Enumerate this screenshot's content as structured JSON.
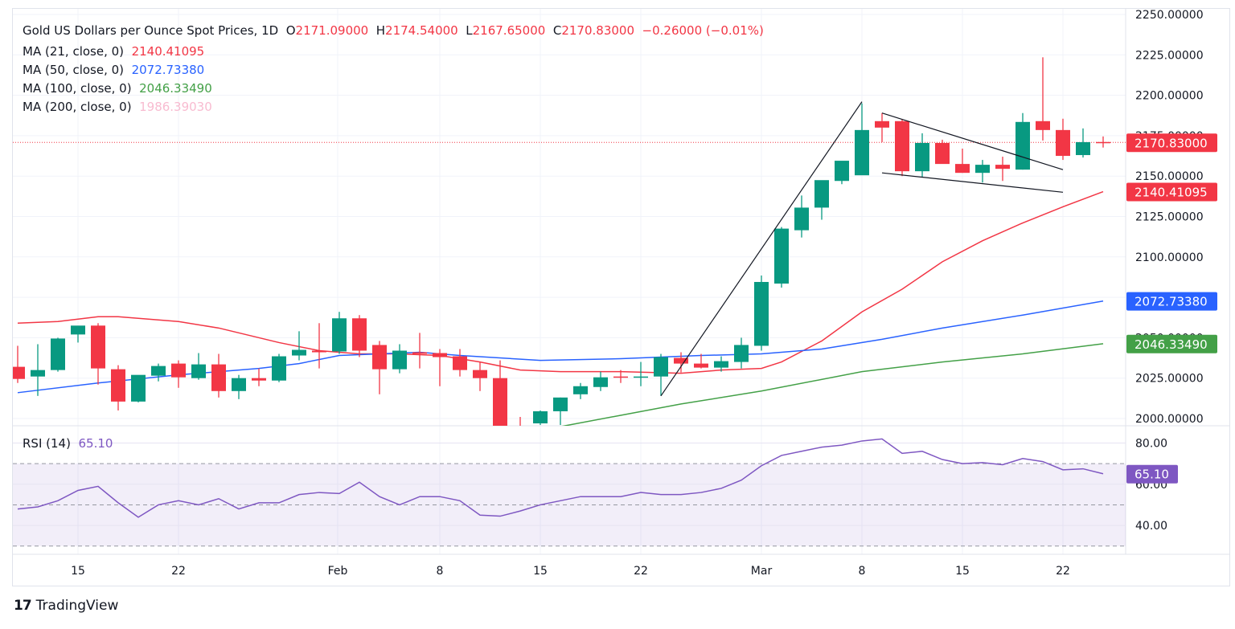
{
  "header": {
    "symbol": "Gold US Dollars per Ounce Spot Prices, 1D",
    "o_label": "O",
    "open": "2171.09000",
    "h_label": "H",
    "high": "2174.54000",
    "l_label": "L",
    "low": "2167.65000",
    "c_label": "C",
    "close": "2170.83000",
    "change": "−0.26000 (−0.01%)"
  },
  "indicators": [
    {
      "label": "MA (21, close, 0)",
      "value": "2140.41095",
      "color": "#f23645"
    },
    {
      "label": "MA (50, close, 0)",
      "value": "2072.73380",
      "color": "#2962ff"
    },
    {
      "label": "MA (100, close, 0)",
      "value": "2046.33490",
      "color": "#43a047"
    },
    {
      "label": "MA (200, close, 0)",
      "value": "1986.39030",
      "color": "#f8bbd0"
    }
  ],
  "rsi": {
    "label": "RSI (14)",
    "value": "65.10",
    "color": "#7e57c2"
  },
  "colors": {
    "up": "#089981",
    "down": "#f23645",
    "grid": "#f0f3fa",
    "rsi_band": "#7e57c2"
  },
  "footer": {
    "brand": "TradingView",
    "logo_glyph": "17"
  },
  "chart_data": {
    "type": "candlestick",
    "title": "Gold US Dollars per Ounce Spot Prices, 1D",
    "ylim": [
      1996,
      2254
    ],
    "y_ticks": [
      "2250.00000",
      "2225.00000",
      "2200.00000",
      "2175.00000",
      "2150.00000",
      "2125.00000",
      "2100.00000",
      "2075.00000",
      "2050.00000",
      "2025.00000",
      "2000.00000"
    ],
    "y_tick_values": [
      2250,
      2225,
      2200,
      2175,
      2150,
      2125,
      2100,
      2075,
      2050,
      2025,
      2000
    ],
    "x_ticks": [
      {
        "label": "15",
        "index": 3
      },
      {
        "label": "22",
        "index": 8
      },
      {
        "label": "Feb",
        "index": 16
      },
      {
        "label": "8",
        "index": 21
      },
      {
        "label": "15",
        "index": 26
      },
      {
        "label": "22",
        "index": 31
      },
      {
        "label": "Mar",
        "index": 37
      },
      {
        "label": "8",
        "index": 42
      },
      {
        "label": "15",
        "index": 47
      },
      {
        "label": "22",
        "index": 52
      }
    ],
    "candles": [
      [
        2032.0,
        2045.0,
        2022.0,
        2024.5
      ],
      [
        2026.0,
        2046.0,
        2014.0,
        2030.0
      ],
      [
        2030.0,
        2050.0,
        2029.0,
        2049.5
      ],
      [
        2052.0,
        2056.0,
        2047.0,
        2057.5
      ],
      [
        2057.5,
        2059.0,
        2021.0,
        2031.0
      ],
      [
        2030.5,
        2033.0,
        2005.0,
        2010.5
      ],
      [
        2010.5,
        2026.5,
        2010.0,
        2027.0
      ],
      [
        2026.5,
        2034.0,
        2023.0,
        2032.5
      ],
      [
        2034.0,
        2036.0,
        2019.0,
        2025.5
      ],
      [
        2025.0,
        2040.5,
        2024.0,
        2033.5
      ],
      [
        2033.5,
        2040.0,
        2013.0,
        2017.0
      ],
      [
        2017.0,
        2027.0,
        2012.0,
        2025.0
      ],
      [
        2025.0,
        2031.0,
        2020.0,
        2023.5
      ],
      [
        2023.5,
        2040.0,
        2022.5,
        2038.5
      ],
      [
        2039.0,
        2054.0,
        2036.0,
        2042.5
      ],
      [
        2042.0,
        2059.0,
        2031.0,
        2041.0
      ],
      [
        2041.5,
        2066.0,
        2040.0,
        2062.0
      ],
      [
        2062.0,
        2064.0,
        2038.0,
        2042.0
      ],
      [
        2045.5,
        2048.0,
        2015.0,
        2030.5
      ],
      [
        2030.5,
        2046.0,
        2028.0,
        2042.0
      ],
      [
        2041.0,
        2053.0,
        2031.0,
        2040.0
      ],
      [
        2040.5,
        2043.0,
        2020.0,
        2038.0
      ],
      [
        2038.5,
        2043.0,
        2026.0,
        2030.0
      ],
      [
        2030.0,
        2035.0,
        2017.0,
        2025.0
      ],
      [
        2025.0,
        2036.0,
        1989.0,
        1992.0
      ],
      [
        1992.0,
        2001.0,
        1984.0,
        1991.0
      ],
      [
        1997.0,
        2005.0,
        1996.0,
        2004.5
      ],
      [
        2004.5,
        2013.0,
        1996.0,
        2013.0
      ],
      [
        2015.0,
        2022.0,
        2012.0,
        2020.0
      ],
      [
        2019.5,
        2029.0,
        2017.0,
        2025.5
      ],
      [
        2026.0,
        2030.0,
        2022.0,
        2025.5
      ],
      [
        2025.5,
        2035.0,
        2020.0,
        2026.0
      ],
      [
        2026.0,
        2040.0,
        2014.0,
        2038.0
      ],
      [
        2037.5,
        2041.0,
        2028.5,
        2034.0
      ],
      [
        2034.0,
        2040.0,
        2031.0,
        2031.5
      ],
      [
        2031.5,
        2038.5,
        2029.0,
        2035.5
      ],
      [
        2035.0,
        2050.0,
        2031.0,
        2045.5
      ],
      [
        2045.0,
        2088.5,
        2042.0,
        2084.5
      ],
      [
        2083.5,
        2118.5,
        2081.0,
        2117.5
      ],
      [
        2116.5,
        2138.0,
        2112.0,
        2130.5
      ],
      [
        2130.5,
        2141.0,
        2123.0,
        2147.5
      ],
      [
        2147.0,
        2157.5,
        2145.0,
        2159.5
      ],
      [
        2150.5,
        2195.0,
        2153.0,
        2178.5
      ],
      [
        2184.0,
        2189.0,
        2171.0,
        2180.0
      ],
      [
        2184.0,
        2185.0,
        2150.0,
        2153.0
      ],
      [
        2153.0,
        2176.5,
        2149.5,
        2170.5
      ],
      [
        2170.5,
        2172.5,
        2158.0,
        2157.5
      ],
      [
        2157.5,
        2167.0,
        2152.0,
        2152.0
      ],
      [
        2152.0,
        2160.0,
        2146.0,
        2157.0
      ],
      [
        2157.0,
        2162.0,
        2147.0,
        2154.5
      ],
      [
        2154.0,
        2189.0,
        2154.0,
        2183.5
      ],
      [
        2184.0,
        2223.5,
        2172.0,
        2178.5
      ],
      [
        2178.5,
        2185.5,
        2160.0,
        2162.5
      ],
      [
        2163.0,
        2179.5,
        2161.5,
        2171.0
      ],
      [
        2171.09,
        2174.54,
        2167.65,
        2170.83
      ]
    ],
    "moving_averages": [
      {
        "name": "MA 21",
        "color": "#f23645",
        "points": [
          [
            0,
            2059
          ],
          [
            2,
            2060
          ],
          [
            4,
            2063
          ],
          [
            5,
            2063
          ],
          [
            8,
            2060
          ],
          [
            10,
            2056
          ],
          [
            13,
            2047
          ],
          [
            15,
            2042
          ],
          [
            17,
            2040
          ],
          [
            19,
            2040
          ],
          [
            21,
            2039
          ],
          [
            23,
            2035
          ],
          [
            25,
            2030
          ],
          [
            27,
            2029
          ],
          [
            30,
            2029
          ],
          [
            33,
            2028
          ],
          [
            35,
            2030
          ],
          [
            37,
            2031
          ],
          [
            38,
            2035
          ],
          [
            40,
            2048
          ],
          [
            42,
            2066
          ],
          [
            44,
            2080
          ],
          [
            46,
            2097
          ],
          [
            48,
            2110
          ],
          [
            50,
            2121
          ],
          [
            52,
            2131
          ],
          [
            54,
            2140.4
          ]
        ]
      },
      {
        "name": "MA 50",
        "color": "#2962ff",
        "points": [
          [
            0,
            2016
          ],
          [
            4,
            2022
          ],
          [
            8,
            2027
          ],
          [
            12,
            2031
          ],
          [
            14,
            2034
          ],
          [
            16,
            2039
          ],
          [
            18,
            2040
          ],
          [
            20,
            2041
          ],
          [
            22,
            2039
          ],
          [
            26,
            2036
          ],
          [
            30,
            2037
          ],
          [
            34,
            2039
          ],
          [
            37,
            2040
          ],
          [
            40,
            2043
          ],
          [
            43,
            2049
          ],
          [
            46,
            2056
          ],
          [
            50,
            2064
          ],
          [
            54,
            2072.7
          ]
        ]
      },
      {
        "name": "MA 100",
        "color": "#43a047",
        "points": [
          [
            27,
            1995
          ],
          [
            30,
            2002
          ],
          [
            33,
            2009
          ],
          [
            37,
            2017
          ],
          [
            42,
            2029
          ],
          [
            46,
            2035
          ],
          [
            50,
            2040
          ],
          [
            54,
            2046.3
          ]
        ]
      }
    ],
    "trendlines": [
      {
        "name": "rally-line",
        "from": [
          32,
          2014
        ],
        "to": [
          42,
          2196
        ]
      },
      {
        "name": "pennant-upper",
        "from": [
          43,
          2189
        ],
        "to": [
          52,
          2154
        ]
      },
      {
        "name": "pennant-lower",
        "from": [
          43,
          2152
        ],
        "to": [
          52,
          2140
        ]
      }
    ],
    "last_price_line": 2170.83,
    "price_badges": [
      {
        "value": "2170.83000",
        "price": 2170.83,
        "color": "#f23645"
      },
      {
        "value": "2140.41095",
        "price": 2140.41,
        "color": "#f23645"
      },
      {
        "value": "2072.73380",
        "price": 2072.73,
        "color": "#2962ff"
      },
      {
        "value": "2046.33490",
        "price": 2046.33,
        "color": "#43a047"
      }
    ],
    "rsi_panel": {
      "ylim": [
        26,
        88
      ],
      "y_ticks": [
        "80.00",
        "60.00",
        "40.00"
      ],
      "y_tick_values": [
        80,
        60,
        40
      ],
      "band": [
        30,
        70
      ],
      "mid": 50,
      "values": [
        48,
        49,
        52,
        57,
        59,
        51,
        44,
        50,
        52,
        50,
        53,
        48,
        51,
        51,
        55,
        56,
        55.5,
        61,
        54,
        50,
        54,
        54,
        52,
        45,
        44.5,
        47,
        50,
        52,
        54,
        54,
        54,
        56,
        55,
        55,
        56,
        58,
        62,
        69,
        74,
        76,
        78,
        79,
        81,
        82,
        75,
        76,
        72,
        70,
        70.5,
        69.5,
        72.5,
        71,
        67,
        67.5,
        65.1
      ],
      "last_badge": "65.10"
    }
  }
}
